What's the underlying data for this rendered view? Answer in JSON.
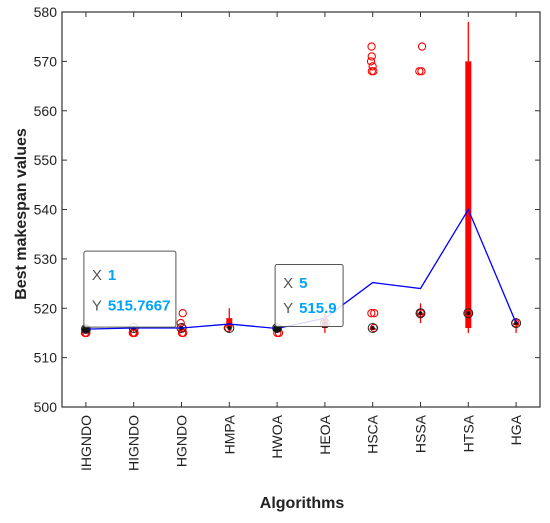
{
  "chart_data": {
    "type": "box",
    "xlabel": "Algorithms",
    "ylabel": "Best makespan values",
    "ylim": [
      500,
      580
    ],
    "yticks": [
      500,
      510,
      520,
      530,
      540,
      550,
      560,
      570,
      580
    ],
    "categories": [
      "IHGNDO",
      "HIGNDO",
      "HGNDO",
      "HMPA",
      "HWOA",
      "HEOA",
      "HSCA",
      "HSSA",
      "HTSA",
      "HGA"
    ],
    "mean_line": [
      515.7667,
      516.0,
      516.0,
      516.8,
      515.9,
      518.0,
      525.2,
      524.0,
      540.0,
      517.0
    ],
    "boxes": [
      {
        "q1": 515.4,
        "median": 515.8,
        "q3": 516.0,
        "whisker_low": 515.0,
        "whisker_high": 516.0,
        "outliers": [
          515.0,
          515.0,
          515.0,
          515.0
        ]
      },
      {
        "q1": 515.5,
        "median": 516.0,
        "q3": 516.0,
        "whisker_low": 515.0,
        "whisker_high": 516.0,
        "outliers": [
          515.0,
          515.0,
          515.0
        ]
      },
      {
        "q1": 515.5,
        "median": 516.0,
        "q3": 516.0,
        "whisker_low": 515.0,
        "whisker_high": 516.0,
        "outliers": [
          515.0,
          515.0,
          516.0,
          517.0,
          519.0
        ]
      },
      {
        "q1": 516.0,
        "median": 516.0,
        "q3": 518.0,
        "whisker_low": 515.0,
        "whisker_high": 520.0,
        "outliers": [
          516.0
        ]
      },
      {
        "q1": 515.5,
        "median": 516.0,
        "q3": 516.0,
        "whisker_low": 515.0,
        "whisker_high": 516.0,
        "outliers": [
          515.0,
          515.0
        ]
      },
      {
        "q1": 516.0,
        "median": 517.0,
        "q3": 518.0,
        "whisker_low": 515.0,
        "whisker_high": 519.0,
        "outliers": []
      },
      {
        "q1": 516.0,
        "median": 516.0,
        "q3": 516.0,
        "whisker_low": 516.0,
        "whisker_high": 516.0,
        "outliers": [
          516.0,
          519.0,
          519.0,
          568.0,
          568.0,
          569.0,
          570.0,
          571.0,
          573.0
        ]
      },
      {
        "q1": 519.0,
        "median": 519.0,
        "q3": 519.0,
        "whisker_low": 517.0,
        "whisker_high": 521.0,
        "outliers": [
          519.0,
          568.0,
          568.0,
          573.0
        ]
      },
      {
        "q1": 516.0,
        "median": 519.0,
        "q3": 570.0,
        "whisker_low": 515.0,
        "whisker_high": 578.0,
        "outliers": [
          519.0
        ]
      },
      {
        "q1": 517.0,
        "median": 517.0,
        "q3": 517.0,
        "whisker_low": 515.0,
        "whisker_high": 518.0,
        "outliers": [
          517.0
        ]
      }
    ],
    "datatips": [
      {
        "category_index": 0,
        "x_label": "X",
        "x_value": "1",
        "y_label": "Y",
        "y_value": "515.7667"
      },
      {
        "category_index": 4,
        "x_label": "X",
        "x_value": "5",
        "y_label": "Y",
        "y_value": "515.9"
      }
    ],
    "colors": {
      "box": "#ff0000",
      "mean_line": "#0000ff",
      "outlier": "#ff0000",
      "datatip_value": "#00a2ff"
    },
    "grid": false,
    "legend": "none"
  }
}
